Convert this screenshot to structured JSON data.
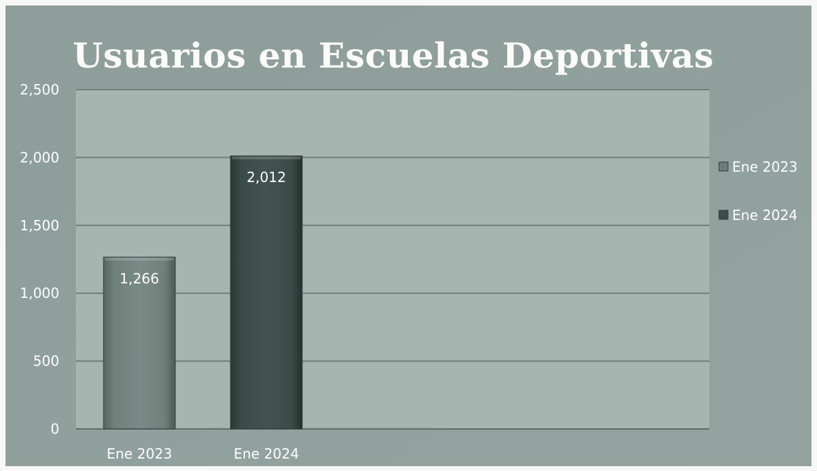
{
  "chart_data": {
    "type": "bar",
    "title": "Usuarios en Escuelas Deportivas",
    "xlabel": "",
    "ylabel": "",
    "categories": [
      "Ene 2023",
      "Ene 2024"
    ],
    "values": [
      1266,
      2012
    ],
    "data_labels": [
      "1,266",
      "2,012"
    ],
    "ylim": [
      0,
      2500
    ],
    "y_ticks": [
      {
        "value": 0,
        "label": "0"
      },
      {
        "value": 500,
        "label": "500"
      },
      {
        "value": 1000,
        "label": "1,000"
      },
      {
        "value": 1500,
        "label": "1,500"
      },
      {
        "value": 2000,
        "label": "2,000"
      },
      {
        "value": 2500,
        "label": "2,500"
      }
    ],
    "grid": true,
    "legend_position": "right",
    "legend": [
      {
        "label": "Ene 2023",
        "color": "#6d7e79"
      },
      {
        "label": "Ene 2024",
        "color": "#3d4d49"
      }
    ],
    "colors": {
      "background": "#8fa09c",
      "plot_area": "#a7b5b1",
      "gridline": "#6f7f7b",
      "text": "#ffffff"
    }
  }
}
